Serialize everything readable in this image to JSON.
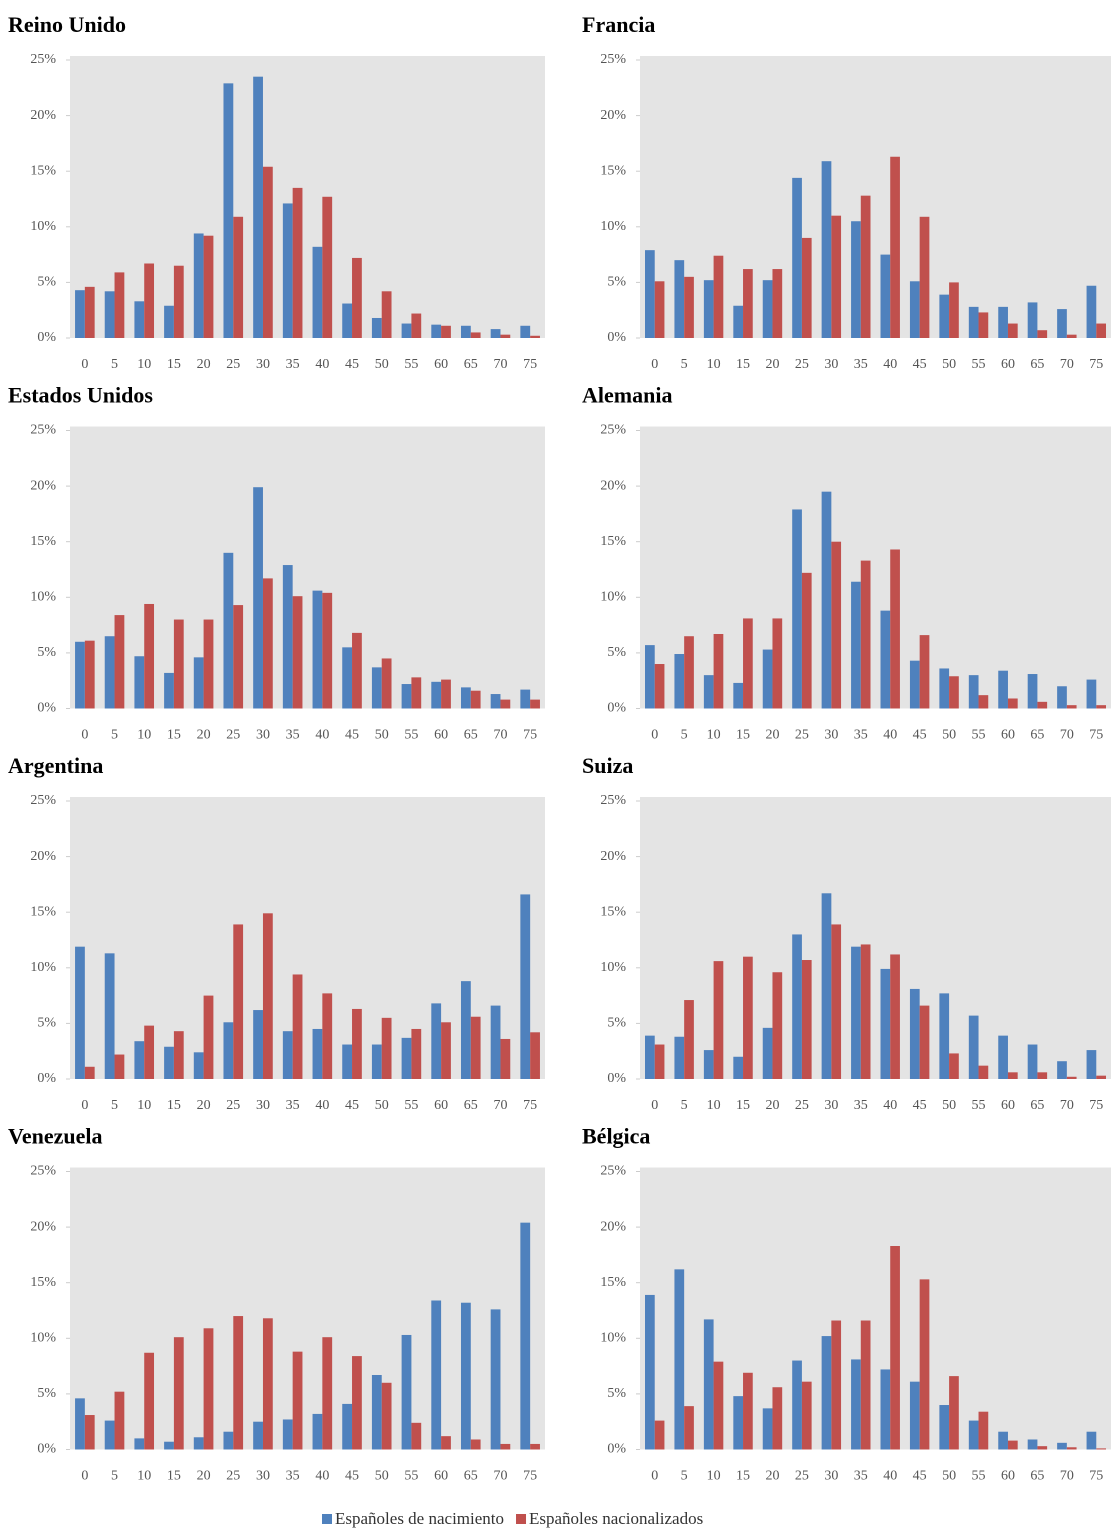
{
  "chart_data": [
    {
      "type": "bar",
      "title": "Reino Unido",
      "categories": [
        "0",
        "5",
        "10",
        "15",
        "20",
        "25",
        "30",
        "35",
        "40",
        "45",
        "50",
        "55",
        "60",
        "65",
        "70",
        "75"
      ],
      "series": [
        {
          "name": "Españoles de nacimiento",
          "color": "#4f81bd",
          "values": [
            4.3,
            4.2,
            3.3,
            2.9,
            9.4,
            22.9,
            23.5,
            12.1,
            8.2,
            3.1,
            1.8,
            1.3,
            1.2,
            1.1,
            0.8,
            1.1
          ]
        },
        {
          "name": "Españoles nacionalizados",
          "color": "#c0504d",
          "values": [
            4.6,
            5.9,
            6.7,
            6.5,
            9.2,
            10.9,
            15.4,
            13.5,
            12.7,
            7.2,
            4.2,
            2.2,
            1.1,
            0.5,
            0.3,
            0.2
          ]
        }
      ],
      "ylim": [
        0,
        25
      ],
      "yticks": [
        {
          "value": 0,
          "label": "0%"
        },
        {
          "value": 5,
          "label": "5%"
        },
        {
          "value": 10,
          "label": "10%"
        },
        {
          "value": 15,
          "label": "15%"
        },
        {
          "value": 20,
          "label": "20%"
        },
        {
          "value": 25,
          "label": "25%"
        }
      ]
    },
    {
      "type": "bar",
      "title": "Francia",
      "categories": [
        "0",
        "5",
        "10",
        "15",
        "20",
        "25",
        "30",
        "35",
        "40",
        "45",
        "50",
        "55",
        "60",
        "65",
        "70",
        "75"
      ],
      "series": [
        {
          "name": "Españoles de nacimiento",
          "color": "#4f81bd",
          "values": [
            7.9,
            7.0,
            5.2,
            2.9,
            5.2,
            14.4,
            15.9,
            10.5,
            7.5,
            5.1,
            3.9,
            2.8,
            2.8,
            3.2,
            2.6,
            4.7
          ]
        },
        {
          "name": "Españoles nacionalizados",
          "color": "#c0504d",
          "values": [
            5.1,
            5.5,
            7.4,
            6.2,
            6.2,
            9.0,
            11.0,
            12.8,
            16.3,
            10.9,
            5.0,
            2.3,
            1.3,
            0.7,
            0.3,
            1.3
          ]
        }
      ],
      "ylim": [
        0,
        25
      ],
      "yticks": [
        {
          "value": 0,
          "label": "0%"
        },
        {
          "value": 5,
          "label": "5%"
        },
        {
          "value": 10,
          "label": "10%"
        },
        {
          "value": 15,
          "label": "15%"
        },
        {
          "value": 20,
          "label": "20%"
        },
        {
          "value": 25,
          "label": "25%"
        }
      ]
    },
    {
      "type": "bar",
      "title": "Estados Unidos",
      "categories": [
        "0",
        "5",
        "10",
        "15",
        "20",
        "25",
        "30",
        "35",
        "40",
        "45",
        "50",
        "55",
        "60",
        "65",
        "70",
        "75"
      ],
      "series": [
        {
          "name": "Españoles de nacimiento",
          "color": "#4f81bd",
          "values": [
            6.0,
            6.5,
            4.7,
            3.2,
            4.6,
            14.0,
            19.9,
            12.9,
            10.6,
            5.5,
            3.7,
            2.2,
            2.4,
            1.9,
            1.3,
            1.7
          ]
        },
        {
          "name": "Españoles nacionalizados",
          "color": "#c0504d",
          "values": [
            6.1,
            8.4,
            9.4,
            8.0,
            8.0,
            9.3,
            11.7,
            10.1,
            10.4,
            6.8,
            4.5,
            2.8,
            2.6,
            1.6,
            0.8,
            0.8
          ]
        }
      ],
      "ylim": [
        0,
        25
      ],
      "yticks": [
        {
          "value": 0,
          "label": "0%"
        },
        {
          "value": 5,
          "label": "5%"
        },
        {
          "value": 10,
          "label": "10%"
        },
        {
          "value": 15,
          "label": "15%"
        },
        {
          "value": 20,
          "label": "20%"
        },
        {
          "value": 25,
          "label": "25%"
        }
      ]
    },
    {
      "type": "bar",
      "title": "Alemania",
      "categories": [
        "0",
        "5",
        "10",
        "15",
        "20",
        "25",
        "30",
        "35",
        "40",
        "45",
        "50",
        "55",
        "60",
        "65",
        "70",
        "75"
      ],
      "series": [
        {
          "name": "Españoles de nacimiento",
          "color": "#4f81bd",
          "values": [
            5.7,
            4.9,
            3.0,
            2.3,
            5.3,
            17.9,
            19.5,
            11.4,
            8.8,
            4.3,
            3.6,
            3.0,
            3.4,
            3.1,
            2.0,
            2.6
          ]
        },
        {
          "name": "Españoles nacionalizados",
          "color": "#c0504d",
          "values": [
            4.0,
            6.5,
            6.7,
            8.1,
            8.1,
            12.2,
            15.0,
            13.3,
            14.3,
            6.6,
            2.9,
            1.2,
            0.9,
            0.6,
            0.3,
            0.3
          ]
        }
      ],
      "ylim": [
        0,
        25
      ],
      "yticks": [
        {
          "value": 0,
          "label": "0%"
        },
        {
          "value": 5,
          "label": "5%"
        },
        {
          "value": 10,
          "label": "10%"
        },
        {
          "value": 15,
          "label": "15%"
        },
        {
          "value": 20,
          "label": "20%"
        },
        {
          "value": 25,
          "label": "25%"
        }
      ]
    },
    {
      "type": "bar",
      "title": "Argentina",
      "categories": [
        "0",
        "5",
        "10",
        "15",
        "20",
        "25",
        "30",
        "35",
        "40",
        "45",
        "50",
        "55",
        "60",
        "65",
        "70",
        "75"
      ],
      "series": [
        {
          "name": "Españoles de nacimiento",
          "color": "#4f81bd",
          "values": [
            11.9,
            11.3,
            3.4,
            2.9,
            2.4,
            5.1,
            6.2,
            4.3,
            4.5,
            3.1,
            3.1,
            3.7,
            6.8,
            8.8,
            6.6,
            16.6
          ]
        },
        {
          "name": "Españoles nacionalizados",
          "color": "#c0504d",
          "values": [
            1.1,
            2.2,
            4.8,
            4.3,
            7.5,
            13.9,
            14.9,
            9.4,
            7.7,
            6.3,
            5.5,
            4.5,
            5.1,
            5.6,
            3.6,
            4.2
          ]
        }
      ],
      "ylim": [
        0,
        25
      ],
      "yticks": [
        {
          "value": 0,
          "label": "0%"
        },
        {
          "value": 5,
          "label": "5%"
        },
        {
          "value": 10,
          "label": "10%"
        },
        {
          "value": 15,
          "label": "15%"
        },
        {
          "value": 20,
          "label": "20%"
        },
        {
          "value": 25,
          "label": "25%"
        }
      ]
    },
    {
      "type": "bar",
      "title": "Suiza",
      "categories": [
        "0",
        "5",
        "10",
        "15",
        "20",
        "25",
        "30",
        "35",
        "40",
        "45",
        "50",
        "55",
        "60",
        "65",
        "70",
        "75"
      ],
      "series": [
        {
          "name": "Españoles de nacimiento",
          "color": "#4f81bd",
          "values": [
            3.9,
            3.8,
            2.6,
            2.0,
            4.6,
            13.0,
            16.7,
            11.9,
            9.9,
            8.1,
            7.7,
            5.7,
            3.9,
            3.1,
            1.6,
            2.6
          ]
        },
        {
          "name": "Españoles nacionalizados",
          "color": "#c0504d",
          "values": [
            3.1,
            7.1,
            10.6,
            11.0,
            9.6,
            10.7,
            13.9,
            12.1,
            11.2,
            6.6,
            2.3,
            1.2,
            0.6,
            0.6,
            0.2,
            0.3
          ]
        }
      ],
      "ylim": [
        0,
        25
      ],
      "yticks": [
        {
          "value": 0,
          "label": "0%"
        },
        {
          "value": 5,
          "label": "5%"
        },
        {
          "value": 10,
          "label": "10%"
        },
        {
          "value": 15,
          "label": "15%"
        },
        {
          "value": 20,
          "label": "20%"
        },
        {
          "value": 25,
          "label": "25%"
        }
      ]
    },
    {
      "type": "bar",
      "title": "Venezuela",
      "categories": [
        "0",
        "5",
        "10",
        "15",
        "20",
        "25",
        "30",
        "35",
        "40",
        "45",
        "50",
        "55",
        "60",
        "65",
        "70",
        "75"
      ],
      "series": [
        {
          "name": "Españoles de nacimiento",
          "color": "#4f81bd",
          "values": [
            4.6,
            2.6,
            1.0,
            0.7,
            1.1,
            1.6,
            2.5,
            2.7,
            3.2,
            4.1,
            6.7,
            10.3,
            13.4,
            13.2,
            12.6,
            20.4
          ]
        },
        {
          "name": "Españoles nacionalizados",
          "color": "#c0504d",
          "values": [
            3.1,
            5.2,
            8.7,
            10.1,
            10.9,
            12.0,
            11.8,
            8.8,
            10.1,
            8.4,
            6.0,
            2.4,
            1.2,
            0.9,
            0.5,
            0.5
          ]
        }
      ],
      "ylim": [
        0,
        25
      ],
      "yticks": [
        {
          "value": 0,
          "label": "0%"
        },
        {
          "value": 5,
          "label": "5%"
        },
        {
          "value": 10,
          "label": "10%"
        },
        {
          "value": 15,
          "label": "15%"
        },
        {
          "value": 20,
          "label": "20%"
        },
        {
          "value": 25,
          "label": "25%"
        }
      ]
    },
    {
      "type": "bar",
      "title": "Bélgica",
      "categories": [
        "0",
        "5",
        "10",
        "15",
        "20",
        "25",
        "30",
        "35",
        "40",
        "45",
        "50",
        "55",
        "60",
        "65",
        "70",
        "75"
      ],
      "series": [
        {
          "name": "Españoles de nacimiento",
          "color": "#4f81bd",
          "values": [
            13.9,
            16.2,
            11.7,
            4.8,
            3.7,
            8.0,
            10.2,
            8.1,
            7.2,
            6.1,
            4.0,
            2.6,
            1.6,
            0.9,
            0.6,
            1.6
          ]
        },
        {
          "name": "Españoles nacionalizados",
          "color": "#c0504d",
          "values": [
            2.6,
            3.9,
            7.9,
            6.9,
            5.6,
            6.1,
            11.6,
            11.6,
            18.3,
            15.3,
            6.6,
            3.4,
            0.8,
            0.3,
            0.2,
            0.1
          ]
        }
      ],
      "ylim": [
        0,
        25
      ],
      "yticks": [
        {
          "value": 0,
          "label": "0%"
        },
        {
          "value": 5,
          "label": "5%"
        },
        {
          "value": 10,
          "label": "10%"
        },
        {
          "value": 15,
          "label": "15%"
        },
        {
          "value": 20,
          "label": "20%"
        },
        {
          "value": 25,
          "label": "25%"
        }
      ]
    }
  ]
}
